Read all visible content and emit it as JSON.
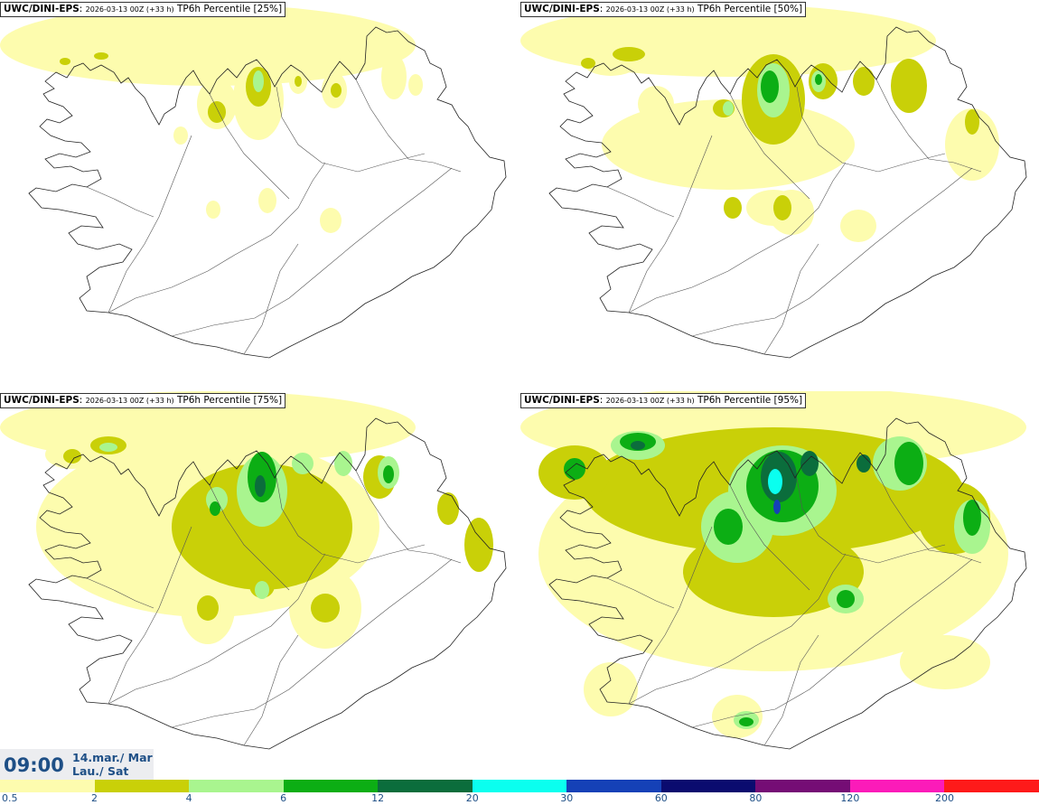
{
  "panels": [
    {
      "model": "UWC/DINI-EPS",
      "run": "2026-03-13 00Z (+33 h)",
      "field": "TP6h Percentile [25%]",
      "level": 0
    },
    {
      "model": "UWC/DINI-EPS",
      "run": "2026-03-13 00Z (+33 h)",
      "field": "TP6h Percentile [50%]",
      "level": 1
    },
    {
      "model": "UWC/DINI-EPS",
      "run": "2026-03-13 00Z (+33 h)",
      "field": "TP6h Percentile [75%]",
      "level": 2
    },
    {
      "model": "UWC/DINI-EPS",
      "run": "2026-03-13 00Z (+33 h)",
      "field": "TP6h Percentile [95%]",
      "level": 3
    }
  ],
  "valid_time": {
    "time": "09:00",
    "date_line1": "14.mar./ Mar",
    "date_line2": "Lau./ Sat"
  },
  "colorbar": {
    "colors": [
      "#fdfcae",
      "#c9d008",
      "#a9f58f",
      "#0cae14",
      "#0b6d3c",
      "#0affef",
      "#1541b7",
      "#0a0b6f",
      "#750d75",
      "#fb1bb9",
      "#fe1a1a"
    ],
    "labels": [
      "0.5",
      "2",
      "4",
      "6",
      "12",
      "20",
      "30",
      "60",
      "80",
      "120",
      "200"
    ]
  }
}
